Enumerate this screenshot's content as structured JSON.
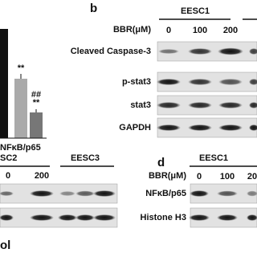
{
  "panel_a": {
    "significance": [
      "**",
      "**",
      "##"
    ],
    "x_label": "NFκB/p65"
  },
  "panel_b": {
    "letter": "b",
    "treatment": "BBR(μM)",
    "group": "EESC1",
    "lanes": [
      "0",
      "100",
      "200"
    ],
    "rows": [
      "Cleaved Caspase-3",
      "p-stat3",
      "stat3",
      "GAPDH"
    ]
  },
  "panel_c": {
    "groups": [
      "SC2",
      "EESC3"
    ],
    "lanes": [
      "0",
      "200"
    ],
    "legend_fragment": "ol"
  },
  "panel_d": {
    "letter": "d",
    "treatment": "BBR(μM)",
    "group": "EESC1",
    "lanes": [
      "0",
      "100",
      "20"
    ],
    "rows": [
      "NFκB/p65",
      "Histone H3"
    ]
  }
}
